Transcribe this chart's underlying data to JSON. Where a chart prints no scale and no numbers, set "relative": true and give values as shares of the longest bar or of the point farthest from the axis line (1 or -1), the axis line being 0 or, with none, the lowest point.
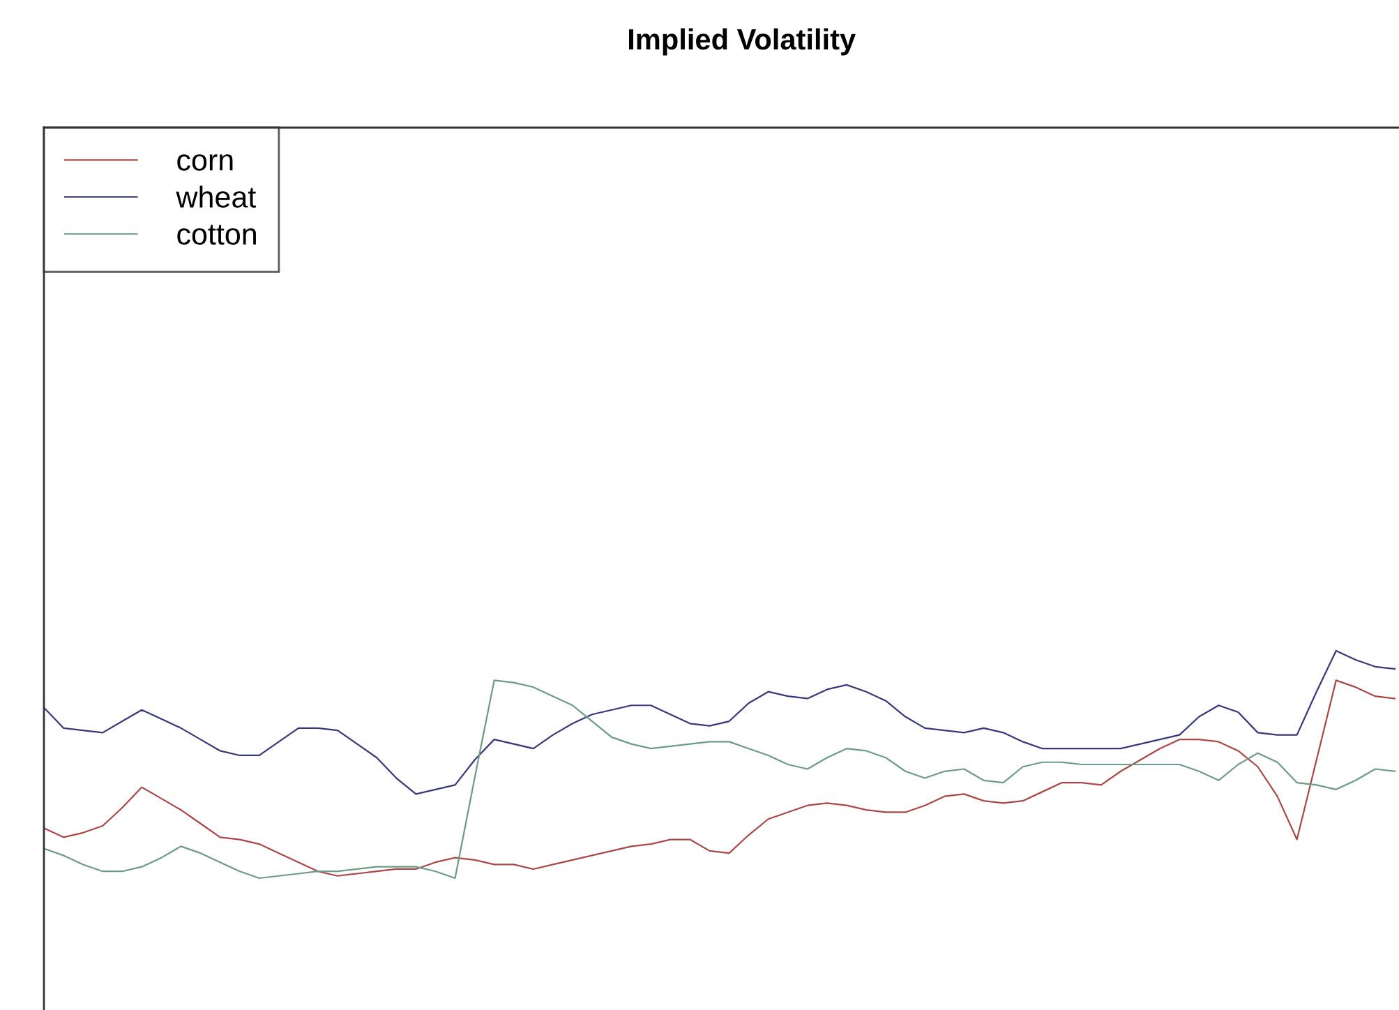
{
  "chart_data": {
    "type": "line",
    "title": "Implied Volatility",
    "relative": true,
    "legend": "top left",
    "line_style": "solid",
    "marker": "none",
    "categories": [
      null,
      null,
      null,
      null,
      null,
      null,
      null,
      null,
      null,
      null,
      null,
      null,
      null,
      null,
      null,
      null,
      null,
      null,
      null,
      null,
      null,
      null,
      null,
      null,
      null,
      null,
      null,
      null,
      null,
      null,
      null,
      null,
      null,
      null,
      null,
      null,
      null,
      null,
      null,
      null,
      null,
      null,
      null,
      null,
      null,
      null,
      null,
      null,
      null,
      null,
      null,
      null,
      null,
      null,
      null,
      null,
      null,
      null,
      null,
      null,
      null,
      null,
      null,
      null,
      null,
      null,
      null,
      null,
      null,
      null
    ],
    "series": [
      {
        "name": "corn",
        "color": "#a84848",
        "values": [
          0.22,
          0.18,
          0.2,
          0.23,
          0.31,
          0.4,
          0.35,
          0.3,
          0.24,
          0.18,
          0.17,
          0.15,
          0.11,
          0.07,
          0.03,
          0.01,
          0.02,
          0.03,
          0.04,
          0.04,
          0.07,
          0.09,
          0.08,
          0.06,
          0.06,
          0.04,
          0.06,
          0.08,
          0.1,
          0.12,
          0.14,
          0.15,
          0.17,
          0.17,
          0.12,
          0.11,
          0.19,
          0.26,
          0.29,
          0.32,
          0.33,
          0.32,
          0.3,
          0.29,
          0.29,
          0.32,
          0.36,
          0.37,
          0.34,
          0.33,
          0.34,
          0.38,
          0.42,
          0.42,
          0.41,
          0.47,
          0.52,
          0.57,
          0.61,
          0.61,
          0.6,
          0.56,
          0.49,
          0.36,
          0.17,
          0.52,
          0.87,
          0.84,
          0.8,
          0.79
        ]
      },
      {
        "name": "wheat",
        "color": "#383878",
        "values": [
          0.75,
          0.66,
          0.65,
          0.64,
          0.69,
          0.74,
          0.7,
          0.66,
          0.61,
          0.56,
          0.54,
          0.54,
          0.6,
          0.66,
          0.66,
          0.65,
          0.59,
          0.53,
          0.44,
          0.37,
          0.39,
          0.41,
          0.52,
          0.61,
          0.59,
          0.57,
          0.63,
          0.68,
          0.72,
          0.74,
          0.76,
          0.76,
          0.72,
          0.68,
          0.67,
          0.69,
          0.77,
          0.82,
          0.8,
          0.79,
          0.83,
          0.85,
          0.82,
          0.78,
          0.71,
          0.66,
          0.65,
          0.64,
          0.66,
          0.64,
          0.6,
          0.57,
          0.57,
          0.57,
          0.57,
          0.57,
          0.59,
          0.61,
          0.63,
          0.71,
          0.76,
          0.73,
          0.64,
          0.63,
          0.63,
          0.82,
          1,
          0.96,
          0.93,
          0.92
        ]
      },
      {
        "name": "cotton",
        "color": "#6e9a88",
        "values": [
          0.13,
          0.1,
          0.06,
          0.03,
          0.03,
          0.05,
          0.09,
          0.14,
          0.11,
          0.07,
          0.03,
          0.0,
          0.01,
          0.02,
          0.03,
          0.03,
          0.04,
          0.05,
          0.05,
          0.05,
          0.03,
          0,
          0.44,
          0.87,
          0.86,
          0.84,
          0.8,
          0.76,
          0.69,
          0.62,
          0.59,
          0.57,
          0.58,
          0.59,
          0.6,
          0.6,
          0.57,
          0.54,
          0.5,
          0.48,
          0.53,
          0.57,
          0.56,
          0.53,
          0.47,
          0.44,
          0.47,
          0.48,
          0.43,
          0.42,
          0.49,
          0.51,
          0.51,
          0.5,
          0.5,
          0.5,
          0.5,
          0.5,
          0.5,
          0.47,
          0.43,
          0.5,
          0.55,
          0.51,
          0.42,
          0.41,
          0.39,
          0.43,
          0.48,
          0.47
        ]
      }
    ]
  }
}
